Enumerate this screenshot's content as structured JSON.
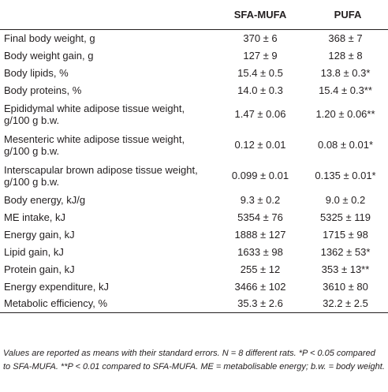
{
  "table": {
    "headers": [
      "",
      "SFA-MUFA",
      "PUFA"
    ],
    "rows": [
      {
        "label": [
          "Final body weight, g"
        ],
        "sfa_mufa": "370 ± 6",
        "pufa": "368 ± 7"
      },
      {
        "label": [
          "Body weight gain, g"
        ],
        "sfa_mufa": "127 ± 9",
        "pufa": "128 ± 8"
      },
      {
        "label": [
          "Body lipids, %"
        ],
        "sfa_mufa": "15.4 ± 0.5",
        "pufa": "13.8 ± 0.3*"
      },
      {
        "label": [
          "Body proteins, %"
        ],
        "sfa_mufa": "14.0 ± 0.3",
        "pufa": "15.4 ± 0.3**"
      },
      {
        "label": [
          "Epididymal white adipose tissue weight,",
          "g/100 g b.w."
        ],
        "sfa_mufa": "1.47 ± 0.06",
        "pufa": "1.20 ± 0.06**"
      },
      {
        "label": [
          "Mesenteric white adipose tissue weight,",
          "g/100 g b.w."
        ],
        "sfa_mufa": "0.12 ± 0.01",
        "pufa": "0.08 ± 0.01*"
      },
      {
        "label": [
          "Interscapular brown adipose tissue weight,",
          "g/100 g b.w."
        ],
        "sfa_mufa": "0.099 ± 0.01",
        "pufa": "0.135 ± 0.01*"
      },
      {
        "label": [
          "Body energy, kJ/g"
        ],
        "sfa_mufa": "9.3 ± 0.2",
        "pufa": "9.0 ± 0.2"
      },
      {
        "label": [
          "ME intake, kJ"
        ],
        "sfa_mufa": "5354 ± 76",
        "pufa": "5325 ± 119"
      },
      {
        "label": [
          "Energy gain, kJ"
        ],
        "sfa_mufa": "1888 ± 127",
        "pufa": "1715 ± 98"
      },
      {
        "label": [
          "Lipid gain, kJ"
        ],
        "sfa_mufa": "1633 ± 98",
        "pufa": "1362 ± 53*"
      },
      {
        "label": [
          "Protein gain, kJ"
        ],
        "sfa_mufa": "255 ± 12",
        "pufa": "353 ± 13**"
      },
      {
        "label": [
          "Energy expenditure, kJ"
        ],
        "sfa_mufa": "3466 ± 102",
        "pufa": "3610 ± 80"
      },
      {
        "label": [
          "Metabolic efficiency, %"
        ],
        "sfa_mufa": "35.3 ± 2.6",
        "pufa": "32.2 ± 2.5"
      }
    ]
  },
  "footnote": "Values are reported as means with their standard errors. N = 8 different rats. *P < 0.05 compared to SFA-MUFA. **P < 0.01 compared to SFA-MUFA. ME = metabolisable energy; b.w. = body weight."
}
